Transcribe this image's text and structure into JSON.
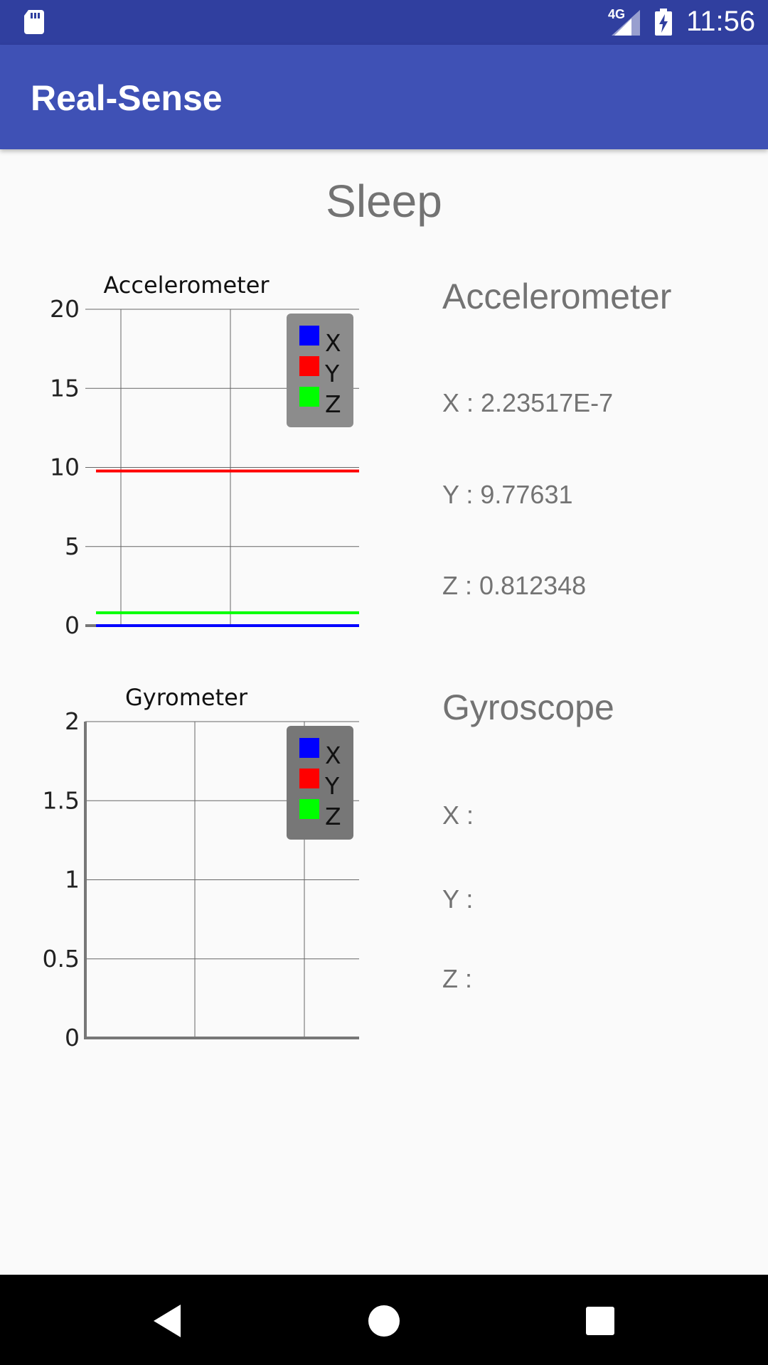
{
  "status_bar": {
    "network_badge": "4G",
    "time": "11:56",
    "icons": [
      "sd-card-icon",
      "signal-icon",
      "battery-charging-icon"
    ]
  },
  "app_bar": {
    "title": "Real-Sense"
  },
  "activity": {
    "title": "Sleep"
  },
  "charts": {
    "accelerometer": {
      "title": "Accelerometer",
      "legend": [
        "X",
        "Y",
        "Z"
      ]
    },
    "gyrometer": {
      "title": "Gyrometer",
      "legend": [
        "X",
        "Y",
        "Z"
      ]
    }
  },
  "chart_data": [
    {
      "type": "line",
      "title": "Accelerometer",
      "xlabel": "",
      "ylabel": "",
      "ylim": [
        0,
        20
      ],
      "yticks": [
        "0",
        "5",
        "10",
        "15",
        "20"
      ],
      "grid": true,
      "legend_position": "top-right",
      "series": [
        {
          "name": "X",
          "color": "#0000ff",
          "values": [
            2e-07,
            2e-07
          ]
        },
        {
          "name": "Y",
          "color": "#ff0000",
          "values": [
            9.77631,
            9.77631
          ]
        },
        {
          "name": "Z",
          "color": "#00ff00",
          "values": [
            0.812348,
            0.812348
          ]
        }
      ]
    },
    {
      "type": "line",
      "title": "Gyrometer",
      "xlabel": "",
      "ylabel": "",
      "ylim": [
        0,
        2
      ],
      "yticks": [
        "0",
        "0.5",
        "1",
        "1.5",
        "2"
      ],
      "grid": true,
      "legend_position": "top-right",
      "series": [
        {
          "name": "X",
          "color": "#0000ff",
          "values": []
        },
        {
          "name": "Y",
          "color": "#ff0000",
          "values": []
        },
        {
          "name": "Z",
          "color": "#00ff00",
          "values": []
        }
      ]
    }
  ],
  "readings": {
    "accelerometer": {
      "heading": "Accelerometer",
      "x": "X : 2.23517E-7",
      "y": "Y : 9.77631",
      "z": "Z : 0.812348"
    },
    "gyroscope": {
      "heading": "Gyroscope",
      "x": "X :",
      "y": "Y :",
      "z": "Z :"
    }
  },
  "nav_bar": {
    "buttons": [
      "back-icon",
      "home-icon",
      "recents-icon"
    ]
  },
  "colors": {
    "status_bar": "#303f9f",
    "app_bar": "#3f51b5",
    "background": "#fafafa",
    "text_secondary": "#737373"
  }
}
